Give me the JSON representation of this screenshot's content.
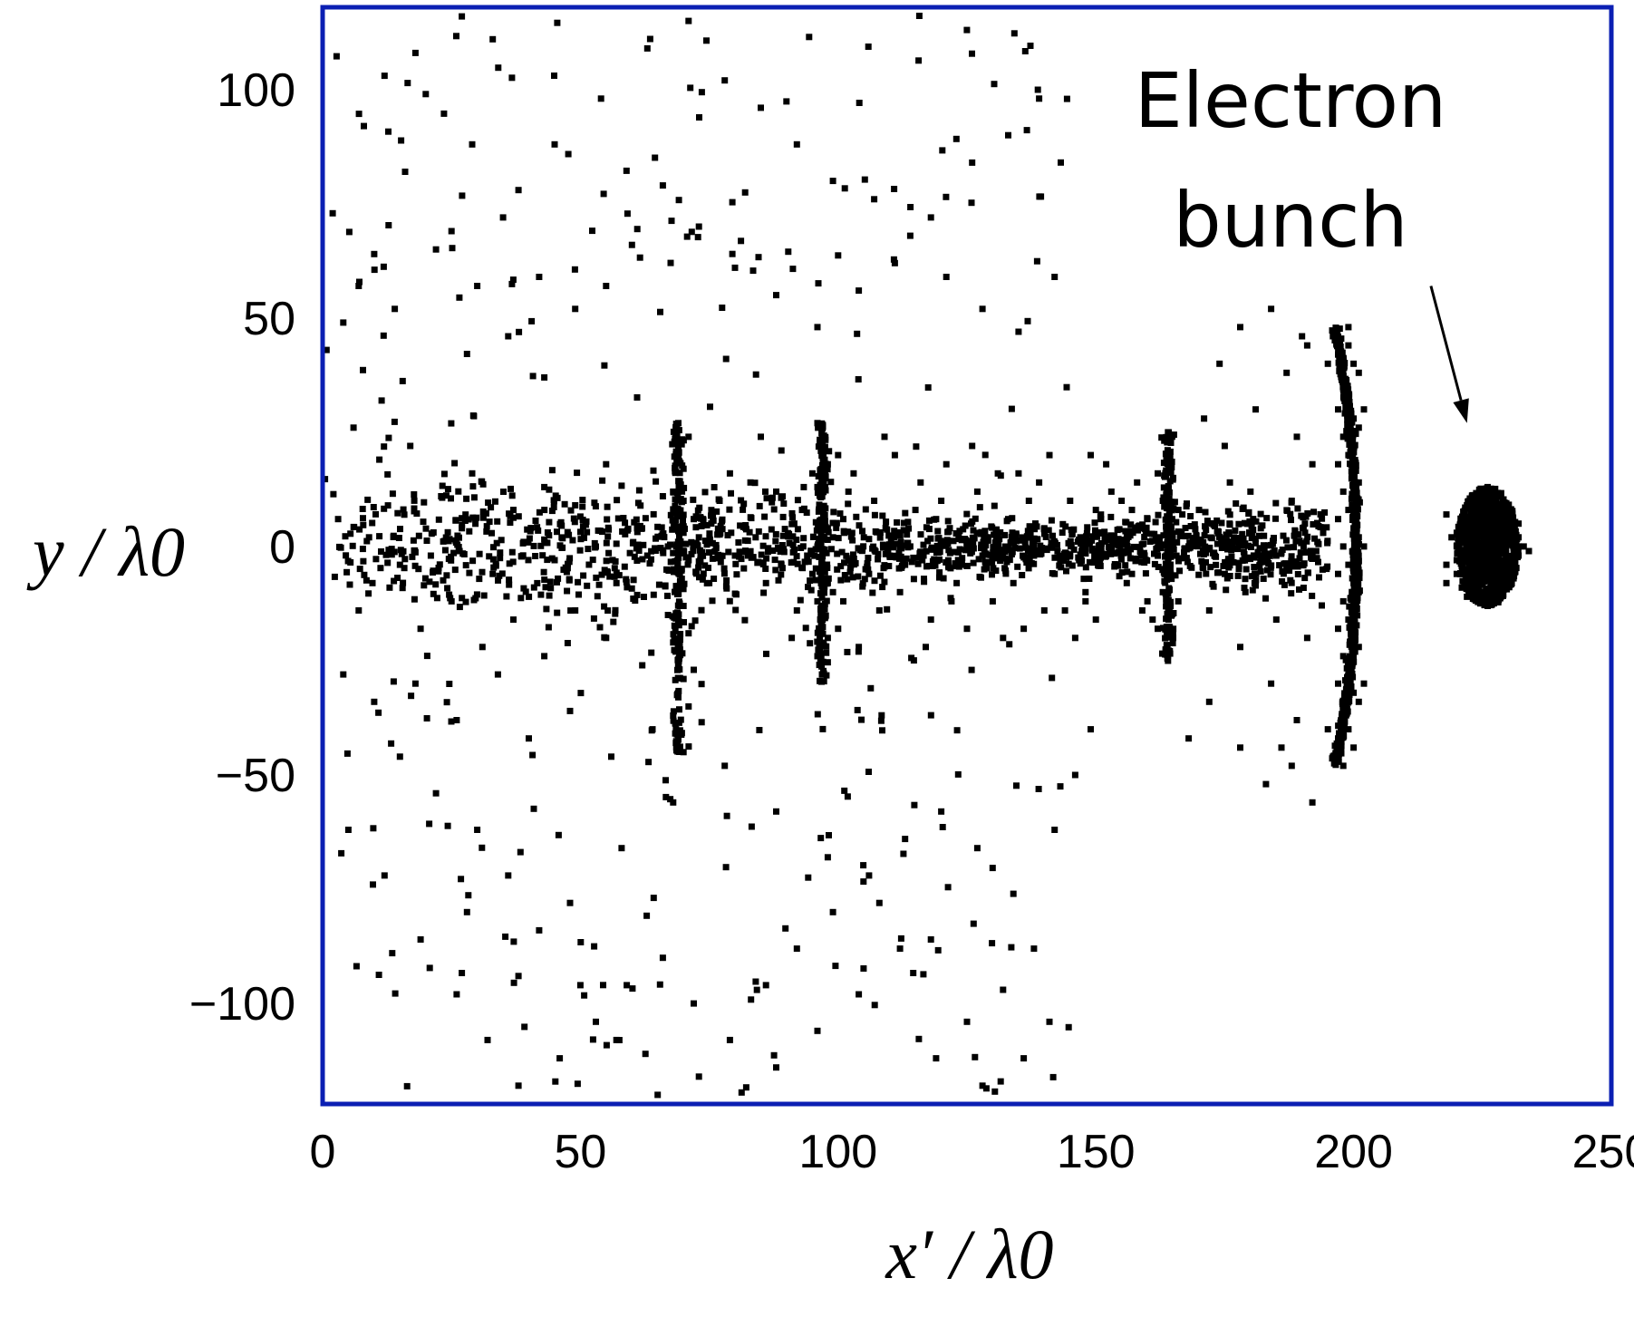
{
  "chart_data": {
    "type": "scatter",
    "title": "",
    "xlabel": "x′ / λ0",
    "ylabel": "y / λ0",
    "xlim": [
      0,
      250
    ],
    "ylim": [
      -122,
      118
    ],
    "x_ticks": [
      0,
      50,
      100,
      150,
      200,
      250
    ],
    "y_ticks": [
      100,
      50,
      0,
      -50,
      -100
    ],
    "grid": false,
    "legend": "none",
    "frame_color": "#0b1fb3",
    "marker_color": "#000000",
    "annotation": {
      "line1": "Electron",
      "line2": "bunch",
      "arrow_from": [
        215,
        57
      ],
      "arrow_to": [
        222,
        27
      ]
    },
    "features": {
      "electron_bunch": {
        "x_center": 226,
        "y_center": 0,
        "x_half_width": 6,
        "y_half_height": 13
      },
      "plasma_wall": {
        "x_center": 199,
        "y_half_height": 48
      },
      "dense_column_1": {
        "x": 69,
        "y_range": [
          -45,
          27
        ]
      },
      "dense_column_2": {
        "x": 97,
        "y_range": [
          -30,
          27
        ]
      },
      "dense_column_3": {
        "x": 164,
        "y_range": [
          -25,
          25
        ]
      },
      "channel_core": {
        "x_range": [
          0,
          195
        ],
        "y_half_width": 28
      }
    },
    "points": [
      [
        5,
        118
      ],
      [
        12,
        103
      ],
      [
        8,
        92
      ],
      [
        20,
        99
      ],
      [
        27,
        116
      ],
      [
        33,
        111
      ],
      [
        16,
        82
      ],
      [
        25,
        69
      ],
      [
        30,
        57
      ],
      [
        36,
        46
      ],
      [
        43,
        37
      ],
      [
        7,
        57
      ],
      [
        14,
        52
      ],
      [
        22,
        65
      ],
      [
        38,
        78
      ],
      [
        45,
        88
      ],
      [
        54,
        98
      ],
      [
        63,
        109
      ],
      [
        71,
        115
      ],
      [
        78,
        102
      ],
      [
        85,
        96
      ],
      [
        92,
        88
      ],
      [
        99,
        80
      ],
      [
        107,
        76
      ],
      [
        114,
        68
      ],
      [
        121,
        59
      ],
      [
        128,
        52
      ],
      [
        135,
        47
      ],
      [
        142,
        59
      ],
      [
        139,
        98
      ],
      [
        133,
        90
      ],
      [
        126,
        84
      ],
      [
        118,
        72
      ],
      [
        111,
        62
      ],
      [
        104,
        56
      ],
      [
        96,
        48
      ],
      [
        88,
        55
      ],
      [
        80,
        61
      ],
      [
        73,
        70
      ],
      [
        66,
        79
      ],
      [
        60,
        66
      ],
      [
        55,
        57
      ],
      [
        49,
        52
      ],
      [
        42,
        59
      ],
      [
        35,
        72
      ],
      [
        29,
        88
      ],
      [
        18,
        108
      ],
      [
        10,
        64
      ],
      [
        4,
        49
      ],
      [
        6,
        26
      ],
      [
        11,
        19
      ],
      [
        17,
        22
      ],
      [
        23,
        11
      ],
      [
        29,
        16
      ],
      [
        37,
        8
      ],
      [
        43,
        13
      ],
      [
        49,
        9
      ],
      [
        55,
        18
      ],
      [
        61,
        4
      ],
      [
        66,
        11
      ],
      [
        3,
        6
      ],
      [
        9,
        2
      ],
      [
        15,
        -4
      ],
      [
        21,
        -2
      ],
      [
        27,
        4
      ],
      [
        33,
        -6
      ],
      [
        39,
        1
      ],
      [
        45,
        -3
      ],
      [
        51,
        5
      ],
      [
        57,
        -8
      ],
      [
        63,
        -2
      ],
      [
        7,
        -14
      ],
      [
        13,
        -9
      ],
      [
        19,
        -18
      ],
      [
        25,
        -12
      ],
      [
        31,
        -22
      ],
      [
        37,
        -16
      ],
      [
        43,
        -24
      ],
      [
        49,
        -14
      ],
      [
        55,
        -20
      ],
      [
        62,
        -26
      ],
      [
        4,
        -28
      ],
      [
        10,
        -34
      ],
      [
        18,
        -30
      ],
      [
        26,
        -38
      ],
      [
        34,
        -28
      ],
      [
        40,
        -42
      ],
      [
        48,
        -36
      ],
      [
        56,
        -46
      ],
      [
        64,
        -40
      ],
      [
        5,
        -62
      ],
      [
        12,
        -72
      ],
      [
        19,
        -86
      ],
      [
        26,
        -98
      ],
      [
        32,
        -108
      ],
      [
        38,
        -118
      ],
      [
        46,
        -112
      ],
      [
        53,
        -104
      ],
      [
        59,
        -96
      ],
      [
        66,
        -90
      ],
      [
        72,
        -100
      ],
      [
        79,
        -108
      ],
      [
        86,
        -96
      ],
      [
        92,
        -88
      ],
      [
        99,
        -80
      ],
      [
        106,
        -72
      ],
      [
        113,
        -64
      ],
      [
        120,
        -58
      ],
      [
        127,
        -66
      ],
      [
        134,
        -76
      ],
      [
        138,
        -88
      ],
      [
        132,
        -97
      ],
      [
        125,
        -104
      ],
      [
        119,
        -112
      ],
      [
        128,
        -118
      ],
      [
        136,
        -112
      ],
      [
        141,
        -104
      ],
      [
        112,
        -88
      ],
      [
        104,
        -98
      ],
      [
        96,
        -106
      ],
      [
        88,
        -114
      ],
      [
        81,
        -122
      ],
      [
        73,
        -116
      ],
      [
        65,
        -120
      ],
      [
        57,
        -108
      ],
      [
        50,
        -96
      ],
      [
        42,
        -84
      ],
      [
        36,
        -72
      ],
      [
        30,
        -62
      ],
      [
        22,
        -54
      ],
      [
        15,
        -46
      ],
      [
        28,
        -80
      ],
      [
        38,
        -94
      ],
      [
        48,
        -78
      ],
      [
        58,
        -66
      ],
      [
        68,
        -56
      ],
      [
        78,
        -48
      ],
      [
        88,
        -58
      ],
      [
        98,
        -68
      ],
      [
        108,
        -78
      ],
      [
        118,
        -86
      ],
      [
        142,
        -62
      ],
      [
        146,
        -50
      ],
      [
        149,
        -40
      ],
      [
        69,
        27
      ],
      [
        69,
        22
      ],
      [
        70,
        17
      ],
      [
        68,
        12
      ],
      [
        69,
        8
      ],
      [
        70,
        3
      ],
      [
        69,
        -1
      ],
      [
        68,
        -5
      ],
      [
        69,
        -9
      ],
      [
        70,
        -13
      ],
      [
        69,
        -17
      ],
      [
        68,
        -21
      ],
      [
        69,
        -25
      ],
      [
        70,
        -29
      ],
      [
        69,
        -33
      ],
      [
        68,
        -37
      ],
      [
        69,
        -41
      ],
      [
        70,
        -45
      ],
      [
        71,
        24
      ],
      [
        70,
        10
      ],
      [
        71,
        -3
      ],
      [
        71,
        -19
      ],
      [
        71,
        -35
      ],
      [
        67,
        0
      ],
      [
        67,
        -15
      ],
      [
        72,
        6
      ],
      [
        72,
        -27
      ],
      [
        96,
        27
      ],
      [
        97,
        22
      ],
      [
        98,
        18
      ],
      [
        96,
        13
      ],
      [
        97,
        8
      ],
      [
        98,
        4
      ],
      [
        96,
        0
      ],
      [
        97,
        -4
      ],
      [
        98,
        -8
      ],
      [
        96,
        -12
      ],
      [
        97,
        -16
      ],
      [
        98,
        -20
      ],
      [
        96,
        -24
      ],
      [
        97,
        -28
      ],
      [
        99,
        2
      ],
      [
        99,
        -10
      ],
      [
        95,
        -6
      ],
      [
        95,
        16
      ],
      [
        100,
        20
      ],
      [
        100,
        -18
      ],
      [
        94,
        -2
      ],
      [
        101,
        6
      ],
      [
        77,
        10
      ],
      [
        80,
        -2
      ],
      [
        83,
        14
      ],
      [
        86,
        -8
      ],
      [
        89,
        21
      ],
      [
        92,
        -14
      ],
      [
        103,
        16
      ],
      [
        106,
        -6
      ],
      [
        109,
        24
      ],
      [
        112,
        -10
      ],
      [
        115,
        8
      ],
      [
        118,
        -16
      ],
      [
        121,
        18
      ],
      [
        124,
        -4
      ],
      [
        127,
        12
      ],
      [
        130,
        -12
      ],
      [
        133,
        6
      ],
      [
        136,
        -18
      ],
      [
        139,
        14
      ],
      [
        142,
        -6
      ],
      [
        145,
        10
      ],
      [
        148,
        -10
      ],
      [
        151,
        6
      ],
      [
        154,
        -4
      ],
      [
        157,
        8
      ],
      [
        160,
        -12
      ],
      [
        102,
        12
      ],
      [
        105,
        2
      ],
      [
        108,
        -14
      ],
      [
        111,
        20
      ],
      [
        114,
        0
      ],
      [
        117,
        -22
      ],
      [
        120,
        10
      ],
      [
        123,
        -8
      ],
      [
        126,
        22
      ],
      [
        129,
        2
      ],
      [
        132,
        -20
      ],
      [
        135,
        16
      ],
      [
        138,
        -2
      ],
      [
        141,
        20
      ],
      [
        144,
        -14
      ],
      [
        147,
        2
      ],
      [
        150,
        -16
      ],
      [
        153,
        12
      ],
      [
        156,
        -8
      ],
      [
        159,
        4
      ],
      [
        161,
        -16
      ],
      [
        85,
        24
      ],
      [
        88,
        12
      ],
      [
        91,
        -20
      ],
      [
        104,
        -22
      ],
      [
        110,
        -2
      ],
      [
        116,
        14
      ],
      [
        122,
        -12
      ],
      [
        128,
        -2
      ],
      [
        134,
        -8
      ],
      [
        140,
        4
      ],
      [
        146,
        -20
      ],
      [
        152,
        -2
      ],
      [
        158,
        14
      ],
      [
        162,
        2
      ],
      [
        164,
        25
      ],
      [
        164,
        20
      ],
      [
        165,
        15
      ],
      [
        163,
        10
      ],
      [
        164,
        5
      ],
      [
        165,
        0
      ],
      [
        164,
        -5
      ],
      [
        163,
        -10
      ],
      [
        164,
        -15
      ],
      [
        165,
        -20
      ],
      [
        164,
        -25
      ],
      [
        166,
        8
      ],
      [
        166,
        -12
      ],
      [
        162,
        -18
      ],
      [
        162,
        16
      ],
      [
        155,
        10
      ],
      [
        152,
        18
      ],
      [
        149,
        20
      ],
      [
        157,
        -6
      ],
      [
        159,
        -14
      ],
      [
        160,
        6
      ],
      [
        150,
        8
      ],
      [
        145,
        -2
      ],
      [
        148,
        -12
      ],
      [
        140,
        -14
      ],
      [
        137,
        10
      ],
      [
        131,
        16
      ],
      [
        125,
        -18
      ],
      [
        119,
        6
      ],
      [
        113,
        -4
      ],
      [
        107,
        10
      ],
      [
        101,
        -12
      ],
      [
        93,
        8
      ],
      [
        89,
        -4
      ],
      [
        84,
        2
      ],
      [
        79,
        16
      ],
      [
        75,
        -8
      ],
      [
        73,
        2
      ],
      [
        170,
        8
      ],
      [
        173,
        -2
      ],
      [
        176,
        14
      ],
      [
        179,
        -10
      ],
      [
        182,
        4
      ],
      [
        185,
        -16
      ],
      [
        188,
        10
      ],
      [
        190,
        -4
      ],
      [
        192,
        18
      ],
      [
        172,
        -14
      ],
      [
        175,
        22
      ],
      [
        178,
        -22
      ],
      [
        181,
        30
      ],
      [
        184,
        -30
      ],
      [
        187,
        38
      ],
      [
        189,
        -38
      ],
      [
        191,
        44
      ],
      [
        186,
        -44
      ],
      [
        174,
        40
      ],
      [
        178,
        48
      ],
      [
        184,
        52
      ],
      [
        190,
        46
      ],
      [
        178,
        -44
      ],
      [
        183,
        -52
      ],
      [
        188,
        -48
      ],
      [
        192,
        -56
      ],
      [
        172,
        -34
      ],
      [
        168,
        -42
      ],
      [
        171,
        28
      ],
      [
        175,
        -6
      ],
      [
        180,
        12
      ],
      [
        185,
        -2
      ],
      [
        189,
        24
      ],
      [
        191,
        -20
      ],
      [
        199,
        48
      ],
      [
        199,
        44
      ],
      [
        200,
        40
      ],
      [
        198,
        36
      ],
      [
        199,
        32
      ],
      [
        200,
        28
      ],
      [
        198,
        24
      ],
      [
        199,
        20
      ],
      [
        200,
        16
      ],
      [
        198,
        12
      ],
      [
        199,
        8
      ],
      [
        200,
        4
      ],
      [
        198,
        0
      ],
      [
        199,
        -4
      ],
      [
        200,
        -8
      ],
      [
        198,
        -12
      ],
      [
        199,
        -16
      ],
      [
        200,
        -20
      ],
      [
        198,
        -24
      ],
      [
        199,
        -28
      ],
      [
        200,
        -32
      ],
      [
        198,
        -36
      ],
      [
        199,
        -40
      ],
      [
        200,
        -44
      ],
      [
        198,
        -48
      ],
      [
        201,
        38
      ],
      [
        201,
        26
      ],
      [
        201,
        14
      ],
      [
        201,
        2
      ],
      [
        201,
        -10
      ],
      [
        201,
        -22
      ],
      [
        201,
        -34
      ],
      [
        197,
        42
      ],
      [
        197,
        30
      ],
      [
        197,
        18
      ],
      [
        197,
        6
      ],
      [
        197,
        -6
      ],
      [
        197,
        -18
      ],
      [
        197,
        -30
      ],
      [
        197,
        -42
      ],
      [
        196,
        46
      ],
      [
        195,
        40
      ],
      [
        196,
        -46
      ],
      [
        195,
        -40
      ],
      [
        202,
        30
      ],
      [
        202,
        -30
      ],
      [
        202,
        0
      ],
      [
        226,
        13
      ],
      [
        224,
        11
      ],
      [
        228,
        11
      ],
      [
        222,
        9
      ],
      [
        226,
        9
      ],
      [
        230,
        9
      ],
      [
        221,
        6
      ],
      [
        224,
        6
      ],
      [
        227,
        6
      ],
      [
        230,
        6
      ],
      [
        232,
        5
      ],
      [
        220,
        3
      ],
      [
        223,
        3
      ],
      [
        226,
        3
      ],
      [
        229,
        3
      ],
      [
        232,
        2
      ],
      [
        220,
        0
      ],
      [
        223,
        0
      ],
      [
        226,
        0
      ],
      [
        229,
        0
      ],
      [
        232,
        0
      ],
      [
        233,
        0
      ],
      [
        220,
        -3
      ],
      [
        223,
        -3
      ],
      [
        226,
        -3
      ],
      [
        229,
        -3
      ],
      [
        232,
        -2
      ],
      [
        220,
        -6
      ],
      [
        223,
        -6
      ],
      [
        226,
        -6
      ],
      [
        229,
        -6
      ],
      [
        231,
        -5
      ],
      [
        221,
        -9
      ],
      [
        224,
        -9
      ],
      [
        227,
        -9
      ],
      [
        229,
        -8
      ],
      [
        222,
        -11
      ],
      [
        225,
        -12
      ],
      [
        228,
        -11
      ],
      [
        226,
        -13
      ],
      [
        218,
        -4
      ],
      [
        219,
        2
      ],
      [
        218,
        -8
      ],
      [
        218,
        7
      ],
      [
        234,
        -1
      ]
    ]
  }
}
